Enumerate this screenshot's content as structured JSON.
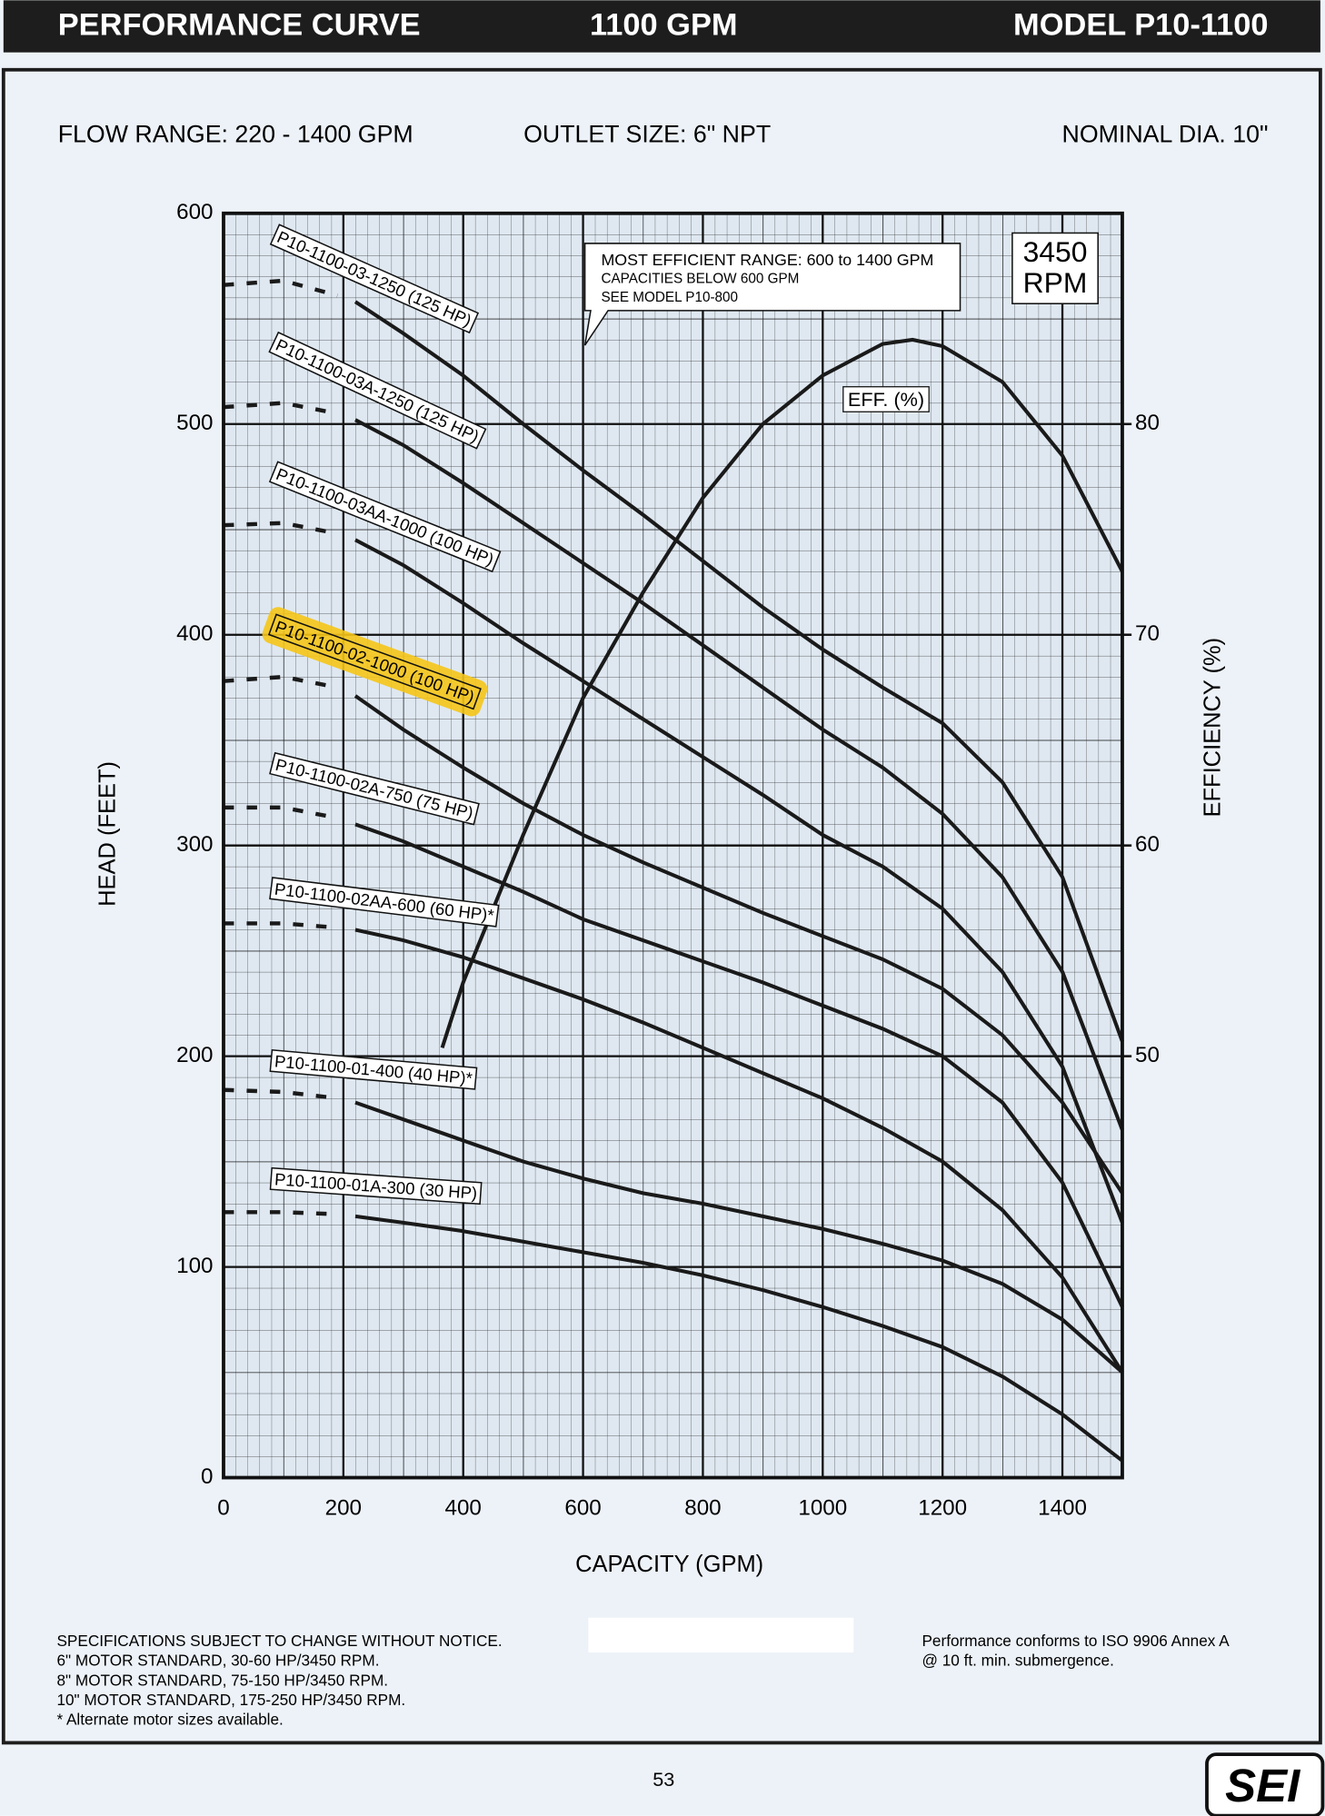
{
  "header": {
    "left": "PERFORMANCE CURVE",
    "center": "1100 GPM",
    "right": "MODEL  P10-1100"
  },
  "subheader": {
    "flow": "FLOW RANGE: 220 - 1400 GPM",
    "outlet": "OUTLET SIZE: 6\" NPT",
    "dia": "NOMINAL DIA. 10\""
  },
  "chart_data": {
    "type": "line",
    "x_label": "CAPACITY (GPM)",
    "y_label": "HEAD (FEET)",
    "y2_label": "EFFICIENCY (%)",
    "annotation": [
      "MOST EFFICIENT RANGE: 600 to 1400 GPM",
      "CAPACITIES BELOW 600 GPM",
      "SEE  MODEL P10-800"
    ],
    "speed": [
      "3450",
      "RPM"
    ],
    "xlim": [
      0,
      1500
    ],
    "xticks": [
      0,
      200,
      400,
      600,
      800,
      1000,
      1200,
      1400
    ],
    "ylim": [
      0,
      600
    ],
    "yticks": [
      0,
      100,
      200,
      300,
      400,
      500,
      600
    ],
    "y2lim": [
      30,
      90
    ],
    "y2ticks": [
      50,
      60,
      70,
      80
    ],
    "grid": true,
    "color": "#1a1a1a",
    "x": [
      220,
      300,
      400,
      500,
      600,
      700,
      800,
      900,
      1000,
      1100,
      1200,
      1300,
      1400,
      1500
    ],
    "dashed_x": [
      0,
      100,
      190
    ],
    "series": [
      {
        "name": "P10-1100-03-1250 (125 HP)",
        "values": [
          558,
          543,
          523,
          500,
          478,
          457,
          435,
          413,
          393,
          375,
          358,
          330,
          285,
          207
        ],
        "dashed_values": [
          566,
          568,
          561
        ]
      },
      {
        "name": "P10-1100-03A-1250 (125 HP)",
        "values": [
          502,
          490,
          472,
          453,
          434,
          415,
          395,
          375,
          355,
          337,
          315,
          285,
          240,
          165
        ],
        "dashed_values": [
          508,
          510,
          505
        ]
      },
      {
        "name": "P10-1100-03AA-1000 (100 HP)",
        "values": [
          445,
          433,
          415,
          396,
          378,
          360,
          342,
          324,
          305,
          290,
          270,
          240,
          195,
          121
        ],
        "dashed_values": [
          452,
          453,
          448
        ]
      },
      {
        "name": "P10-1100-02-1000 (100 HP)",
        "highlighted": true,
        "values": [
          371,
          355,
          337,
          320,
          305,
          292,
          280,
          268,
          257,
          246,
          232,
          210,
          178,
          135
        ],
        "dashed_values": [
          378,
          380,
          375
        ]
      },
      {
        "name": "P10-1100-02A-750 (75 HP)",
        "values": [
          310,
          302,
          290,
          278,
          265,
          255,
          245,
          235,
          224,
          213,
          200,
          178,
          140,
          81
        ],
        "dashed_values": [
          318,
          318,
          313
        ]
      },
      {
        "name": "P10-1100-02AA-600 (60 HP)*",
        "values": [
          260,
          255,
          247,
          237,
          227,
          216,
          204,
          192,
          180,
          166,
          150,
          127,
          95,
          50
        ],
        "dashed_values": [
          263,
          263,
          261
        ]
      },
      {
        "name": "P10-1100-01-400 (40 HP)*",
        "values": [
          178,
          170,
          160,
          150,
          142,
          135,
          130,
          124,
          118,
          111,
          103,
          92,
          75,
          50
        ],
        "dashed_values": [
          184,
          183,
          180
        ]
      },
      {
        "name": "P10-1100-01A-300 (30 HP)",
        "values": [
          124,
          121,
          117,
          112,
          107,
          102,
          96,
          89,
          81,
          72,
          62,
          48,
          30,
          8
        ],
        "dashed_values": [
          126,
          126,
          125
        ]
      },
      {
        "name": "EFF. (%)",
        "axis": "y2",
        "x": [
          365,
          400,
          500,
          600,
          700,
          800,
          900,
          1000,
          1100,
          1150,
          1200,
          1300,
          1400,
          1500
        ],
        "values": [
          50.4,
          53.5,
          60.5,
          67,
          72,
          76.5,
          80,
          82.3,
          83.8,
          84,
          83.7,
          82,
          78.5,
          73
        ]
      }
    ]
  },
  "footer": {
    "notes": [
      "SPECIFICATIONS SUBJECT TO CHANGE WITHOUT NOTICE.",
      "6\" MOTOR STANDARD, 30-60 HP/3450 RPM.",
      "8\" MOTOR STANDARD, 75-150 HP/3450 RPM.",
      "10\" MOTOR STANDARD, 175-250 HP/3450 RPM.",
      "* Alternate motor sizes available."
    ],
    "iso": [
      "Performance conforms to ISO 9906 Annex A",
      "@ 10 ft. min. submergence."
    ],
    "page": "53",
    "logo": "SEI"
  }
}
